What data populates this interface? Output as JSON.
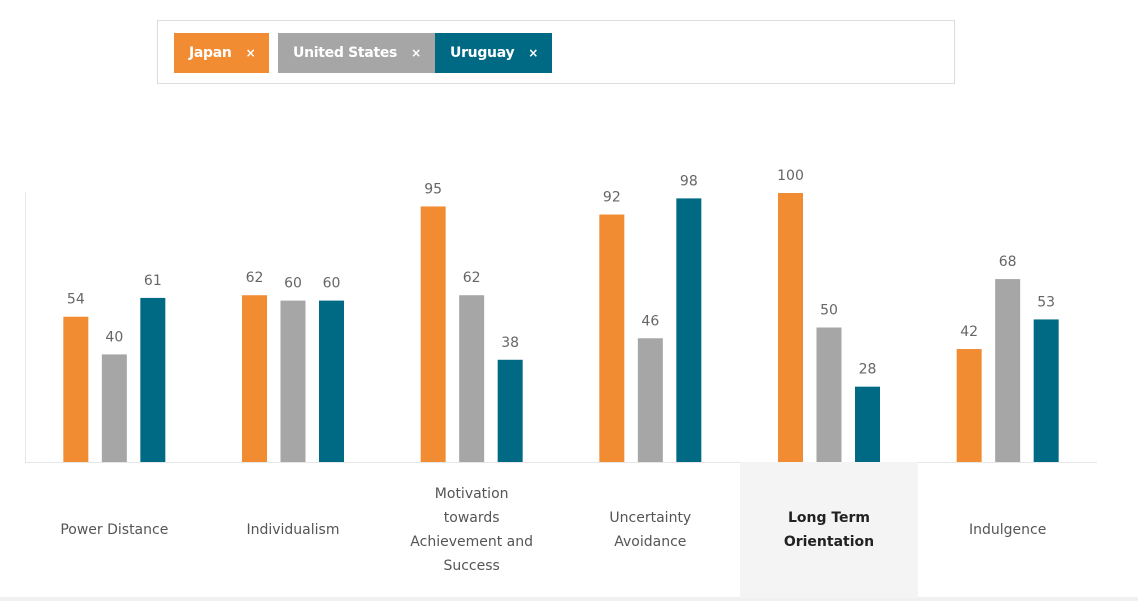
{
  "chart_data": {
    "type": "bar",
    "remove_symbol": "×",
    "categories": [
      "Power Distance",
      "Individualism",
      "Motivation towards Achievement and Success",
      "Uncertainty Avoidance",
      "Long Term Orientation",
      "Indulgence"
    ],
    "series": [
      {
        "name": "Japan",
        "color": "#f28c33",
        "values": [
          54,
          62,
          95,
          92,
          100,
          42
        ]
      },
      {
        "name": "United States",
        "color": "#a6a6a6",
        "values": [
          40,
          60,
          62,
          46,
          50,
          68
        ]
      },
      {
        "name": "Uruguay",
        "color": "#006a85",
        "values": [
          61,
          60,
          38,
          98,
          28,
          53
        ]
      }
    ],
    "ylim": [
      0,
      100
    ],
    "selected_category": 4
  }
}
